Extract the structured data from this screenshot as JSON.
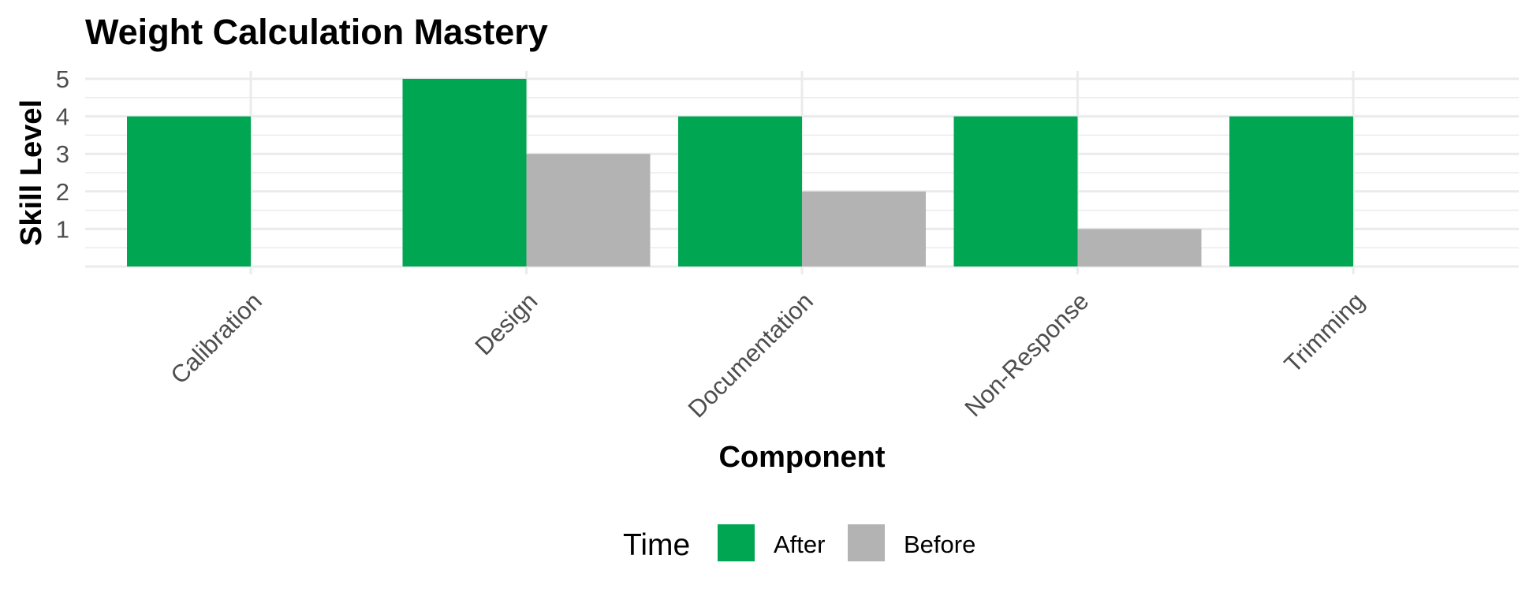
{
  "chart_data": {
    "type": "bar",
    "title": "Weight Calculation Mastery",
    "xlabel": "Component",
    "ylabel": "Skill Level",
    "categories": [
      "Calibration",
      "Design",
      "Documentation",
      "Non-Response",
      "Trimming"
    ],
    "series": [
      {
        "name": "After",
        "color": "#00A651",
        "values": [
          4,
          5,
          4,
          4,
          4
        ]
      },
      {
        "name": "Before",
        "color": "#B3B3B3",
        "values": [
          0,
          3,
          2,
          1,
          0
        ]
      }
    ],
    "y_ticks": [
      1,
      2,
      3,
      4,
      5
    ],
    "ylim": [
      0,
      5
    ],
    "grid": true,
    "legend": {
      "title": "Time",
      "position": "bottom"
    }
  }
}
